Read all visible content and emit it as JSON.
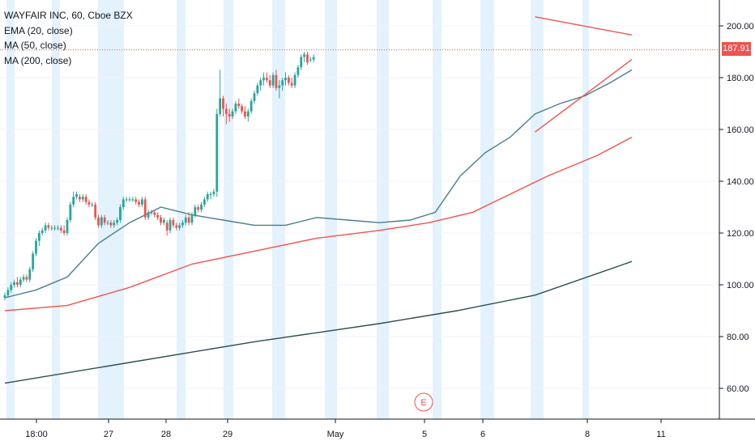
{
  "header": {
    "symbol_line": "WAYFAIR INC, 60, Cboe BZX",
    "indicators": [
      "EMA (20, close)",
      "MA (50, close)",
      "MA (200, close)"
    ]
  },
  "price_tag": {
    "value": "187.91",
    "color": "#ef5350"
  },
  "earnings_marker": {
    "label": "E",
    "color": "#ef5350"
  },
  "colors": {
    "up": "#26a69a",
    "down": "#ef5350",
    "ema20": "#4a7d8c",
    "ma50": "#ef5350",
    "ma200": "#2f4f4f",
    "channel": "#ef5350",
    "session_shade": "#e3f2fd"
  },
  "chart_data": {
    "type": "candlestick",
    "title": "WAYFAIR INC, 60, Cboe BZX",
    "x_tick_labels": [
      "18:00",
      "27",
      "28",
      "29",
      "May",
      "5",
      "6",
      "8",
      "11"
    ],
    "y_tick_labels": [
      "60.00",
      "80.00",
      "100.00",
      "120.00",
      "140.00",
      "160.00",
      "180.00",
      "200.00"
    ],
    "ylim": [
      55,
      205
    ],
    "last_price": 187.91,
    "candles": [
      [
        95,
        97,
        94,
        96
      ],
      [
        96,
        99,
        95,
        98
      ],
      [
        98,
        101,
        97,
        100
      ],
      [
        100,
        102,
        99,
        101
      ],
      [
        101,
        103,
        99,
        100
      ],
      [
        100,
        103,
        99,
        102
      ],
      [
        102,
        104,
        101,
        103
      ],
      [
        103,
        104,
        101,
        102
      ],
      [
        102,
        107,
        101,
        106
      ],
      [
        106,
        113,
        105,
        112
      ],
      [
        112,
        118,
        111,
        117
      ],
      [
        117,
        121,
        115,
        120
      ],
      [
        120,
        122,
        119,
        121
      ],
      [
        121,
        124,
        120,
        123
      ],
      [
        123,
        124,
        121,
        122
      ],
      [
        122,
        123,
        121,
        122
      ],
      [
        122,
        123,
        121,
        122
      ],
      [
        122,
        123,
        121,
        122
      ],
      [
        122,
        123,
        120,
        121
      ],
      [
        121,
        123,
        119,
        120
      ],
      [
        120,
        126,
        119,
        125
      ],
      [
        125,
        132,
        124,
        131
      ],
      [
        131,
        136,
        130,
        134
      ],
      [
        134,
        136,
        133,
        135
      ],
      [
        134,
        135,
        132,
        133
      ],
      [
        133,
        135,
        132,
        134
      ],
      [
        134,
        135,
        131,
        132
      ],
      [
        132,
        133,
        130,
        131
      ],
      [
        131,
        132,
        130,
        131
      ],
      [
        131,
        132,
        125,
        126
      ],
      [
        126,
        127,
        122,
        123
      ],
      [
        123,
        127,
        122,
        126
      ],
      [
        126,
        127,
        123,
        124
      ],
      [
        124,
        125,
        123,
        124
      ],
      [
        124,
        125,
        122,
        123
      ],
      [
        123,
        125,
        122,
        124
      ],
      [
        124,
        126,
        123,
        125
      ],
      [
        125,
        131,
        124,
        130
      ],
      [
        130,
        134,
        129,
        133
      ],
      [
        133,
        134,
        132,
        133
      ],
      [
        133,
        134,
        132,
        133
      ],
      [
        133,
        134,
        132,
        133
      ],
      [
        133,
        134,
        131,
        132
      ],
      [
        132,
        133,
        130,
        131
      ],
      [
        131,
        134,
        130,
        133
      ],
      [
        133,
        134,
        125,
        126
      ],
      [
        126,
        129,
        125,
        128
      ],
      [
        128,
        129,
        127,
        128
      ],
      [
        128,
        129,
        126,
        127
      ],
      [
        127,
        128,
        125,
        126
      ],
      [
        126,
        127,
        123,
        124
      ],
      [
        124,
        126,
        123,
        125
      ],
      [
        124,
        125,
        119,
        121
      ],
      [
        121,
        126,
        120,
        125
      ],
      [
        125,
        126,
        122,
        123
      ],
      [
        123,
        124,
        121,
        122
      ],
      [
        122,
        124,
        121,
        123
      ],
      [
        123,
        125,
        122,
        124
      ],
      [
        124,
        127,
        123,
        126
      ],
      [
        126,
        128,
        123,
        124
      ],
      [
        124,
        128,
        123,
        127
      ],
      [
        127,
        131,
        126,
        130
      ],
      [
        130,
        131,
        128,
        129
      ],
      [
        129,
        132,
        128,
        131
      ],
      [
        131,
        134,
        130,
        133
      ],
      [
        133,
        136,
        132,
        135
      ],
      [
        135,
        136,
        133,
        135
      ],
      [
        135,
        137,
        134,
        136
      ],
      [
        136,
        168,
        134,
        166
      ],
      [
        166,
        183,
        165,
        172
      ],
      [
        172,
        173,
        165,
        168
      ],
      [
        168,
        170,
        162,
        166
      ],
      [
        166,
        168,
        163,
        165
      ],
      [
        165,
        168,
        164,
        167
      ],
      [
        167,
        171,
        166,
        170
      ],
      [
        170,
        172,
        168,
        169
      ],
      [
        169,
        170,
        166,
        167
      ],
      [
        167,
        169,
        164,
        165
      ],
      [
        165,
        168,
        163,
        167
      ],
      [
        167,
        172,
        166,
        171
      ],
      [
        171,
        175,
        170,
        174
      ],
      [
        174,
        178,
        173,
        177
      ],
      [
        177,
        180,
        175,
        179
      ],
      [
        179,
        182,
        177,
        180
      ],
      [
        180,
        182,
        178,
        179
      ],
      [
        179,
        181,
        176,
        177
      ],
      [
        177,
        182,
        176,
        181
      ],
      [
        181,
        183,
        175,
        176
      ],
      [
        176,
        179,
        172,
        177
      ],
      [
        177,
        180,
        175,
        179
      ],
      [
        179,
        182,
        177,
        180
      ],
      [
        180,
        181,
        177,
        178
      ],
      [
        178,
        180,
        176,
        177
      ],
      [
        177,
        182,
        176,
        181
      ],
      [
        181,
        185,
        180,
        184
      ],
      [
        184,
        189,
        183,
        188
      ],
      [
        188,
        190,
        186,
        189
      ],
      [
        189,
        190,
        185,
        186
      ],
      [
        187,
        188,
        186,
        187
      ],
      [
        187,
        189,
        186,
        187.91
      ]
    ],
    "channel_upper": [
      [
        170,
        203.5
      ],
      [
        201,
        196.5
      ]
    ],
    "channel_lower": [
      [
        170,
        159
      ],
      [
        201,
        187
      ]
    ],
    "ema20": [
      [
        0,
        95
      ],
      [
        10,
        98
      ],
      [
        20,
        103
      ],
      [
        30,
        116
      ],
      [
        40,
        124
      ],
      [
        50,
        130
      ],
      [
        60,
        127
      ],
      [
        70,
        125
      ],
      [
        80,
        123
      ],
      [
        90,
        123
      ],
      [
        100,
        126
      ],
      [
        110,
        125
      ],
      [
        120,
        124
      ],
      [
        130,
        125
      ],
      [
        138,
        128
      ],
      [
        146,
        142
      ],
      [
        154,
        151
      ],
      [
        162,
        157
      ],
      [
        170,
        166
      ],
      [
        178,
        170
      ],
      [
        186,
        173
      ],
      [
        194,
        178
      ],
      [
        201,
        183
      ]
    ],
    "ma50": [
      [
        0,
        90
      ],
      [
        20,
        92
      ],
      [
        40,
        99
      ],
      [
        60,
        108
      ],
      [
        80,
        113
      ],
      [
        100,
        118
      ],
      [
        120,
        121
      ],
      [
        136,
        124
      ],
      [
        150,
        128
      ],
      [
        162,
        135
      ],
      [
        174,
        142
      ],
      [
        190,
        150
      ],
      [
        201,
        157
      ]
    ],
    "ma200": [
      [
        0,
        62
      ],
      [
        40,
        70
      ],
      [
        80,
        78
      ],
      [
        120,
        85
      ],
      [
        145,
        90
      ],
      [
        170,
        96
      ],
      [
        201,
        109
      ]
    ]
  }
}
